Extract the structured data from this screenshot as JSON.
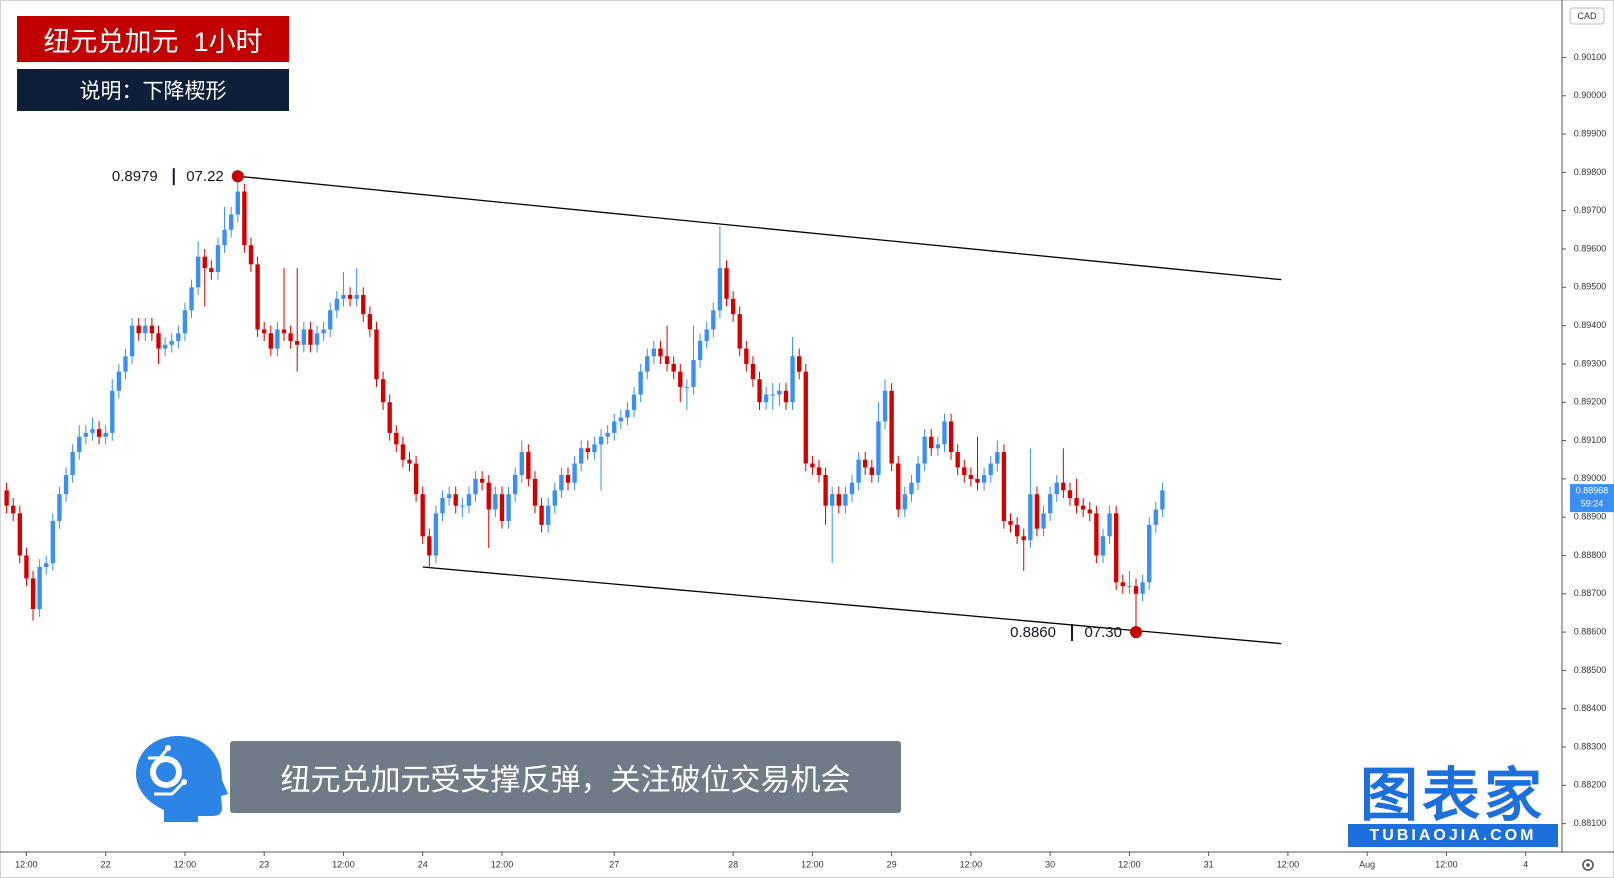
{
  "header": {
    "title": "纽元兑加元  1小时",
    "subtitle": "说明：下降楔形"
  },
  "caption": "纽元兑加元受支撑反弹，关注破位交易机会",
  "logo": {
    "name": "图表家",
    "url": "TUBIAOJIA.COM"
  },
  "chart_data": {
    "type": "candlestick",
    "currency": "CAD",
    "up_color": "#3a8ff0",
    "down_color": "#d40000",
    "line_color": "#000000",
    "grid": false,
    "xlim": [
      -1,
      235.5
    ],
    "xticks": [
      {
        "value": 3,
        "label": "12:00"
      },
      {
        "value": 15,
        "label": "22"
      },
      {
        "value": 27,
        "label": "12:00"
      },
      {
        "value": 39,
        "label": "23"
      },
      {
        "value": 51,
        "label": "12:00"
      },
      {
        "value": 63,
        "label": "24"
      },
      {
        "value": 75,
        "label": "12:00"
      },
      {
        "value": 92,
        "label": "27"
      },
      {
        "value": 110,
        "label": "28"
      },
      {
        "value": 122,
        "label": "12:00"
      },
      {
        "value": 134,
        "label": "29"
      },
      {
        "value": 146,
        "label": "12:00"
      },
      {
        "value": 158,
        "label": "30"
      },
      {
        "value": 170,
        "label": "12:00"
      },
      {
        "value": 182,
        "label": "31"
      },
      {
        "value": 194,
        "label": "12:00"
      },
      {
        "value": 206,
        "label": "Aug"
      },
      {
        "value": 218,
        "label": "12:00"
      },
      {
        "value": 230,
        "label": "4"
      }
    ],
    "ylim": [
      0.88026,
      0.9025
    ],
    "yticks": [
      {
        "value": 0.881,
        "label": "0.88100"
      },
      {
        "value": 0.882,
        "label": "0.88200"
      },
      {
        "value": 0.883,
        "label": "0.88300"
      },
      {
        "value": 0.884,
        "label": "0.88400"
      },
      {
        "value": 0.885,
        "label": "0.88500"
      },
      {
        "value": 0.886,
        "label": "0.88600"
      },
      {
        "value": 0.887,
        "label": "0.88700"
      },
      {
        "value": 0.888,
        "label": "0.88800"
      },
      {
        "value": 0.889,
        "label": "0.88900"
      },
      {
        "value": 0.89,
        "label": "0.89000"
      },
      {
        "value": 0.891,
        "label": "0.89100"
      },
      {
        "value": 0.892,
        "label": "0.89200"
      },
      {
        "value": 0.893,
        "label": "0.89300"
      },
      {
        "value": 0.894,
        "label": "0.89400"
      },
      {
        "value": 0.895,
        "label": "0.89500"
      },
      {
        "value": 0.896,
        "label": "0.89600"
      },
      {
        "value": 0.897,
        "label": "0.89700"
      },
      {
        "value": 0.898,
        "label": "0.89800"
      },
      {
        "value": 0.899,
        "label": "0.89900"
      },
      {
        "value": 0.9,
        "label": "0.90000"
      },
      {
        "value": 0.901,
        "label": "0.90100"
      }
    ],
    "last_price": {
      "value": 0.88968,
      "countdown": "59:24"
    },
    "trendlines": [
      {
        "x": [
          35,
          193
        ],
        "y": [
          0.8979,
          0.8952
        ]
      },
      {
        "x": [
          63,
          193
        ],
        "y": [
          0.8877,
          0.8857
        ]
      }
    ],
    "annotations": [
      {
        "x": 35,
        "price": 0.8979,
        "time": "07.22"
      },
      {
        "x": 171,
        "price": {
          "value": 0.886,
          "label": "0.8860"
        },
        "time": "07.30"
      }
    ],
    "candles": [
      [
        0.8897,
        0.8899,
        0.8891,
        0.8893
      ],
      [
        0.8893,
        0.8895,
        0.8889,
        0.8891
      ],
      [
        0.8891,
        0.8893,
        0.8878,
        0.888
      ],
      [
        0.888,
        0.8882,
        0.8872,
        0.8874
      ],
      [
        0.8874,
        0.8876,
        0.8863,
        0.8866
      ],
      [
        0.8866,
        0.8879,
        0.8864,
        0.8877
      ],
      [
        0.8877,
        0.888,
        0.8875,
        0.8878
      ],
      [
        0.8878,
        0.8891,
        0.8876,
        0.8889
      ],
      [
        0.8889,
        0.8898,
        0.8887,
        0.8896
      ],
      [
        0.8896,
        0.8903,
        0.8894,
        0.8901
      ],
      [
        0.8901,
        0.8909,
        0.8899,
        0.8907
      ],
      [
        0.8907,
        0.8914,
        0.8905,
        0.8911
      ],
      [
        0.8911,
        0.8914,
        0.8909,
        0.8912
      ],
      [
        0.8912,
        0.8916,
        0.891,
        0.8913
      ],
      [
        0.8913,
        0.8915,
        0.8909,
        0.8911
      ],
      [
        0.8911,
        0.8914,
        0.8909,
        0.8912
      ],
      [
        0.8912,
        0.8926,
        0.891,
        0.8923
      ],
      [
        0.8923,
        0.893,
        0.8921,
        0.8928
      ],
      [
        0.8928,
        0.8934,
        0.8926,
        0.8932
      ],
      [
        0.8932,
        0.8942,
        0.893,
        0.894
      ],
      [
        0.894,
        0.8942,
        0.8936,
        0.8938
      ],
      [
        0.8938,
        0.8942,
        0.8936,
        0.894
      ],
      [
        0.894,
        0.8942,
        0.8936,
        0.8938
      ],
      [
        0.8938,
        0.894,
        0.893,
        0.8934
      ],
      [
        0.8934,
        0.8937,
        0.8932,
        0.8935
      ],
      [
        0.8935,
        0.8938,
        0.8933,
        0.8936
      ],
      [
        0.8936,
        0.894,
        0.8934,
        0.8938
      ],
      [
        0.8938,
        0.8946,
        0.8936,
        0.8944
      ],
      [
        0.8944,
        0.8952,
        0.8942,
        0.895
      ],
      [
        0.895,
        0.8962,
        0.8948,
        0.8958
      ],
      [
        0.8958,
        0.896,
        0.8945,
        0.8955
      ],
      [
        0.8955,
        0.8957,
        0.8952,
        0.8954
      ],
      [
        0.8954,
        0.8963,
        0.8952,
        0.8961
      ],
      [
        0.8961,
        0.8971,
        0.8959,
        0.8965
      ],
      [
        0.8965,
        0.8971,
        0.8963,
        0.8969
      ],
      [
        0.8969,
        0.8979,
        0.8967,
        0.8975
      ],
      [
        0.8975,
        0.8977,
        0.8959,
        0.8961
      ],
      [
        0.8961,
        0.8963,
        0.8954,
        0.8956
      ],
      [
        0.8956,
        0.8958,
        0.8937,
        0.8939
      ],
      [
        0.8939,
        0.8941,
        0.8936,
        0.8938
      ],
      [
        0.8938,
        0.894,
        0.8932,
        0.8934
      ],
      [
        0.8934,
        0.8941,
        0.8932,
        0.8939
      ],
      [
        0.8939,
        0.8955,
        0.8936,
        0.8938
      ],
      [
        0.8938,
        0.894,
        0.8934,
        0.8936
      ],
      [
        0.8936,
        0.8955,
        0.8928,
        0.8935
      ],
      [
        0.8935,
        0.8941,
        0.8933,
        0.8939
      ],
      [
        0.8939,
        0.8941,
        0.8933,
        0.8935
      ],
      [
        0.8935,
        0.894,
        0.8933,
        0.8938
      ],
      [
        0.8938,
        0.8941,
        0.8936,
        0.8939
      ],
      [
        0.8939,
        0.8946,
        0.8937,
        0.8944
      ],
      [
        0.8944,
        0.8949,
        0.8942,
        0.8947
      ],
      [
        0.8947,
        0.8954,
        0.8945,
        0.8948
      ],
      [
        0.8948,
        0.895,
        0.8945,
        0.8947
      ],
      [
        0.8947,
        0.8955,
        0.8945,
        0.8948
      ],
      [
        0.8948,
        0.895,
        0.8941,
        0.8943
      ],
      [
        0.8943,
        0.8945,
        0.8937,
        0.8939
      ],
      [
        0.8939,
        0.8941,
        0.8924,
        0.8926
      ],
      [
        0.8926,
        0.8928,
        0.8918,
        0.892
      ],
      [
        0.892,
        0.8922,
        0.891,
        0.8912
      ],
      [
        0.8912,
        0.8914,
        0.8907,
        0.8909
      ],
      [
        0.8909,
        0.8911,
        0.8903,
        0.8905
      ],
      [
        0.8905,
        0.8907,
        0.8902,
        0.8904
      ],
      [
        0.8904,
        0.8906,
        0.8894,
        0.8896
      ],
      [
        0.8896,
        0.8898,
        0.8883,
        0.8885
      ],
      [
        0.8885,
        0.8887,
        0.8877,
        0.888
      ],
      [
        0.888,
        0.8893,
        0.8878,
        0.8891
      ],
      [
        0.8891,
        0.8897,
        0.8889,
        0.8895
      ],
      [
        0.8895,
        0.8898,
        0.8893,
        0.8896
      ],
      [
        0.8896,
        0.8898,
        0.8891,
        0.8893
      ],
      [
        0.8893,
        0.8895,
        0.889,
        0.8893
      ],
      [
        0.8893,
        0.8898,
        0.8891,
        0.8896
      ],
      [
        0.8896,
        0.8902,
        0.8894,
        0.89
      ],
      [
        0.89,
        0.8902,
        0.8897,
        0.8899
      ],
      [
        0.8899,
        0.8901,
        0.8882,
        0.8892
      ],
      [
        0.8892,
        0.8898,
        0.889,
        0.8896
      ],
      [
        0.8896,
        0.8898,
        0.8887,
        0.8889
      ],
      [
        0.8889,
        0.8898,
        0.8887,
        0.8896
      ],
      [
        0.8896,
        0.8903,
        0.8894,
        0.8901
      ],
      [
        0.8901,
        0.891,
        0.8899,
        0.8907
      ],
      [
        0.8907,
        0.8909,
        0.8898,
        0.89
      ],
      [
        0.89,
        0.8902,
        0.8891,
        0.8893
      ],
      [
        0.8893,
        0.8895,
        0.8886,
        0.8888
      ],
      [
        0.8888,
        0.8895,
        0.8886,
        0.8893
      ],
      [
        0.8893,
        0.8899,
        0.8891,
        0.8897
      ],
      [
        0.8897,
        0.8903,
        0.8895,
        0.8901
      ],
      [
        0.8901,
        0.8903,
        0.8897,
        0.8899
      ],
      [
        0.8899,
        0.8906,
        0.8897,
        0.8904
      ],
      [
        0.8904,
        0.891,
        0.8902,
        0.8908
      ],
      [
        0.8908,
        0.891,
        0.8905,
        0.8907
      ],
      [
        0.8907,
        0.8911,
        0.8905,
        0.8909
      ],
      [
        0.8909,
        0.8913,
        0.8897,
        0.8911
      ],
      [
        0.8911,
        0.8914,
        0.8909,
        0.8912
      ],
      [
        0.8912,
        0.8917,
        0.891,
        0.8915
      ],
      [
        0.8915,
        0.8918,
        0.8913,
        0.8916
      ],
      [
        0.8916,
        0.892,
        0.8914,
        0.8918
      ],
      [
        0.8918,
        0.8924,
        0.8916,
        0.8922
      ],
      [
        0.8922,
        0.893,
        0.892,
        0.8928
      ],
      [
        0.8928,
        0.8934,
        0.8926,
        0.8932
      ],
      [
        0.8932,
        0.8936,
        0.893,
        0.8934
      ],
      [
        0.8934,
        0.8936,
        0.893,
        0.8932
      ],
      [
        0.8932,
        0.894,
        0.8928,
        0.893
      ],
      [
        0.893,
        0.8932,
        0.8926,
        0.8928
      ],
      [
        0.8928,
        0.893,
        0.892,
        0.8924
      ],
      [
        0.8924,
        0.8926,
        0.8918,
        0.8924
      ],
      [
        0.8924,
        0.894,
        0.8922,
        0.8931
      ],
      [
        0.8931,
        0.8938,
        0.8929,
        0.8936
      ],
      [
        0.8936,
        0.8941,
        0.8934,
        0.8939
      ],
      [
        0.8939,
        0.8946,
        0.8937,
        0.8944
      ],
      [
        0.8944,
        0.8966,
        0.8942,
        0.8955
      ],
      [
        0.8955,
        0.8957,
        0.8945,
        0.8947
      ],
      [
        0.8947,
        0.8949,
        0.8941,
        0.8943
      ],
      [
        0.8943,
        0.8945,
        0.8932,
        0.8934
      ],
      [
        0.8934,
        0.8936,
        0.8928,
        0.893
      ],
      [
        0.893,
        0.8932,
        0.8924,
        0.8926
      ],
      [
        0.8926,
        0.8928,
        0.8918,
        0.892
      ],
      [
        0.892,
        0.8924,
        0.8918,
        0.8922
      ],
      [
        0.8922,
        0.8925,
        0.8918,
        0.8922
      ],
      [
        0.8922,
        0.8925,
        0.8919,
        0.8923
      ],
      [
        0.8923,
        0.8925,
        0.8918,
        0.892
      ],
      [
        0.892,
        0.8937,
        0.8918,
        0.8932
      ],
      [
        0.8932,
        0.8934,
        0.8926,
        0.8928
      ],
      [
        0.8928,
        0.893,
        0.8902,
        0.8904
      ],
      [
        0.8904,
        0.8906,
        0.8901,
        0.8903
      ],
      [
        0.8903,
        0.8905,
        0.8899,
        0.8901
      ],
      [
        0.8901,
        0.8903,
        0.8888,
        0.8893
      ],
      [
        0.8893,
        0.8898,
        0.8878,
        0.8896
      ],
      [
        0.8896,
        0.8898,
        0.8891,
        0.8893
      ],
      [
        0.8893,
        0.8898,
        0.8891,
        0.8896
      ],
      [
        0.8896,
        0.8901,
        0.8894,
        0.8899
      ],
      [
        0.8899,
        0.8907,
        0.8897,
        0.8905
      ],
      [
        0.8905,
        0.8907,
        0.8901,
        0.8903
      ],
      [
        0.8903,
        0.8905,
        0.8899,
        0.8901
      ],
      [
        0.8901,
        0.892,
        0.8899,
        0.8915
      ],
      [
        0.8915,
        0.8926,
        0.8913,
        0.8923
      ],
      [
        0.8923,
        0.8925,
        0.8902,
        0.8904
      ],
      [
        0.8904,
        0.8906,
        0.889,
        0.8892
      ],
      [
        0.8892,
        0.8898,
        0.889,
        0.8896
      ],
      [
        0.8896,
        0.8901,
        0.8894,
        0.8899
      ],
      [
        0.8899,
        0.8906,
        0.8897,
        0.8904
      ],
      [
        0.8904,
        0.8913,
        0.8902,
        0.8911
      ],
      [
        0.8911,
        0.8913,
        0.8906,
        0.8908
      ],
      [
        0.8908,
        0.8911,
        0.8906,
        0.8909
      ],
      [
        0.8909,
        0.8917,
        0.8907,
        0.8915
      ],
      [
        0.8915,
        0.8917,
        0.8905,
        0.8907
      ],
      [
        0.8907,
        0.8909,
        0.8901,
        0.8903
      ],
      [
        0.8903,
        0.8905,
        0.8899,
        0.8901
      ],
      [
        0.8901,
        0.8903,
        0.8898,
        0.89
      ],
      [
        0.89,
        0.8911,
        0.8897,
        0.8899
      ],
      [
        0.8899,
        0.8903,
        0.8897,
        0.8901
      ],
      [
        0.8901,
        0.8906,
        0.8899,
        0.8904
      ],
      [
        0.8904,
        0.891,
        0.8902,
        0.8907
      ],
      [
        0.8907,
        0.8909,
        0.8887,
        0.8889
      ],
      [
        0.8889,
        0.8891,
        0.8886,
        0.8888
      ],
      [
        0.8888,
        0.889,
        0.8883,
        0.8885
      ],
      [
        0.8885,
        0.8887,
        0.8876,
        0.8884
      ],
      [
        0.8884,
        0.8908,
        0.8882,
        0.8896
      ],
      [
        0.8896,
        0.8898,
        0.8885,
        0.8887
      ],
      [
        0.8887,
        0.8893,
        0.8885,
        0.8891
      ],
      [
        0.8891,
        0.8898,
        0.8889,
        0.8896
      ],
      [
        0.8896,
        0.8901,
        0.8894,
        0.8899
      ],
      [
        0.8899,
        0.8908,
        0.8895,
        0.8897
      ],
      [
        0.8897,
        0.8899,
        0.8893,
        0.8895
      ],
      [
        0.8895,
        0.89,
        0.8891,
        0.8893
      ],
      [
        0.8893,
        0.8895,
        0.889,
        0.8892
      ],
      [
        0.8892,
        0.8894,
        0.8889,
        0.8891
      ],
      [
        0.8891,
        0.8893,
        0.8878,
        0.888
      ],
      [
        0.888,
        0.8887,
        0.8878,
        0.8885
      ],
      [
        0.8885,
        0.8893,
        0.8883,
        0.8891
      ],
      [
        0.8891,
        0.8893,
        0.8871,
        0.8873
      ],
      [
        0.8873,
        0.8875,
        0.887,
        0.8872
      ],
      [
        0.8872,
        0.8876,
        0.887,
        0.8872
      ],
      [
        0.8872,
        0.8874,
        0.886,
        0.887
      ],
      [
        0.887,
        0.8875,
        0.8868,
        0.8873
      ],
      [
        0.8873,
        0.889,
        0.8871,
        0.8888
      ],
      [
        0.8888,
        0.8894,
        0.8886,
        0.8892
      ],
      [
        0.8892,
        0.8899,
        0.889,
        0.8897
      ]
    ]
  }
}
